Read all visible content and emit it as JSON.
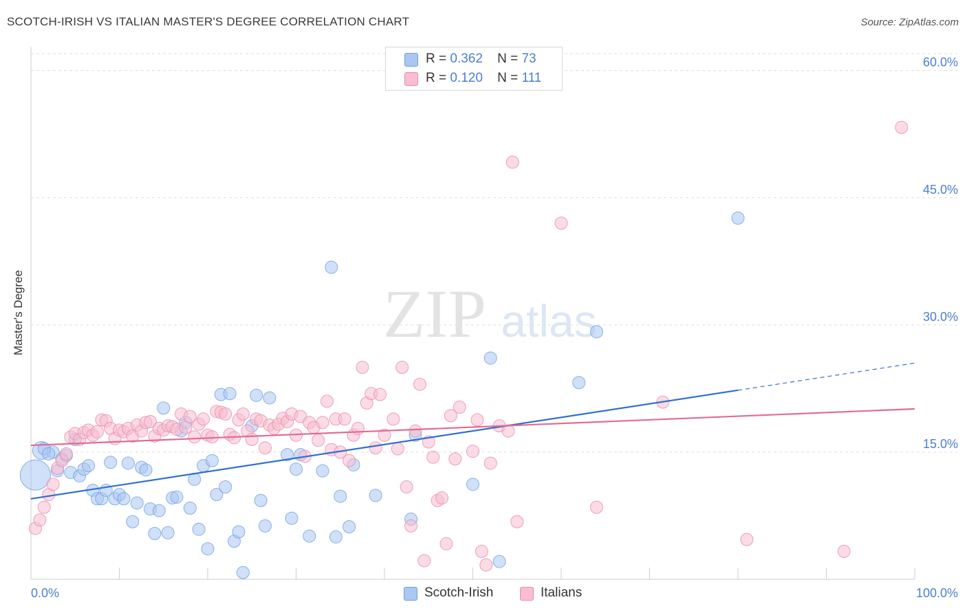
{
  "title": "SCOTCH-IRISH VS ITALIAN MASTER'S DEGREE CORRELATION CHART",
  "source": "Source: ZipAtlas.com",
  "watermark": {
    "zip": "ZIP",
    "atlas": "atlas"
  },
  "legend": {
    "r_label": "R =",
    "n_label": "N =",
    "entries": [
      {
        "name": "Scotch-Irish",
        "r": "0.362",
        "n": "73",
        "color": "#a9c7f2",
        "border": "#6f9fde"
      },
      {
        "name": "Italians",
        "r": "0.120",
        "n": "111",
        "color": "#f8bed0",
        "border": "#e98aa9"
      }
    ]
  },
  "chart_data": {
    "type": "scatter",
    "title": "SCOTCH-IRISH VS ITALIAN MASTER'S DEGREE CORRELATION CHART",
    "xlabel": "",
    "ylabel": "Master's Degree",
    "xlim": [
      0,
      100
    ],
    "ylim": [
      0,
      62
    ],
    "x_tick_labels": [
      "0.0%",
      "100.0%"
    ],
    "y_ticks": [
      15,
      30,
      45,
      60
    ],
    "y_tick_labels": [
      "15.0%",
      "30.0%",
      "45.0%",
      "60.0%"
    ],
    "grid": true,
    "legend_position": "top-center",
    "series": [
      {
        "name": "Scotch-Irish",
        "color": "#a9c7f2",
        "line_color": "#2f6fd0",
        "trend": {
          "x0": 0,
          "y0": 9.5,
          "x1": 80,
          "y1": 22.3,
          "dashed_to_x": 100,
          "dashed_to_y": 25.5
        },
        "points": [
          [
            1.2,
            15.2
          ],
          [
            2.5,
            15.0
          ],
          [
            3.5,
            14.2
          ],
          [
            4.0,
            14.6
          ],
          [
            3.0,
            12.8
          ],
          [
            4.5,
            12.6
          ],
          [
            5.5,
            12.2
          ],
          [
            6.0,
            13.0
          ],
          [
            5.0,
            16.5
          ],
          [
            6.5,
            13.4
          ],
          [
            7.0,
            10.5
          ],
          [
            7.5,
            9.5
          ],
          [
            8.0,
            9.5
          ],
          [
            8.5,
            10.5
          ],
          [
            9.0,
            13.8
          ],
          [
            9.5,
            9.5
          ],
          [
            10.0,
            10.0
          ],
          [
            10.5,
            9.5
          ],
          [
            11.0,
            13.7
          ],
          [
            11.5,
            6.8
          ],
          [
            12.0,
            9.0
          ],
          [
            12.5,
            13.2
          ],
          [
            13.0,
            12.9
          ],
          [
            13.5,
            8.3
          ],
          [
            14.0,
            5.4
          ],
          [
            14.5,
            8.1
          ],
          [
            15.0,
            20.2
          ],
          [
            15.5,
            5.5
          ],
          [
            16.0,
            9.6
          ],
          [
            16.5,
            9.7
          ],
          [
            17.0,
            17.5
          ],
          [
            17.5,
            18.5
          ],
          [
            18.0,
            8.4
          ],
          [
            18.5,
            11.8
          ],
          [
            19.0,
            5.9
          ],
          [
            19.5,
            13.4
          ],
          [
            20.0,
            3.6
          ],
          [
            20.5,
            14.0
          ],
          [
            21.0,
            10.0
          ],
          [
            21.5,
            21.8
          ],
          [
            22.0,
            10.9
          ],
          [
            22.5,
            21.9
          ],
          [
            23.0,
            4.5
          ],
          [
            23.5,
            5.6
          ],
          [
            24.0,
            0.8
          ],
          [
            25.0,
            18.1
          ],
          [
            25.5,
            21.7
          ],
          [
            26.0,
            9.3
          ],
          [
            26.5,
            6.3
          ],
          [
            27.0,
            21.4
          ],
          [
            29.0,
            14.7
          ],
          [
            29.5,
            7.2
          ],
          [
            30.0,
            13.0
          ],
          [
            30.5,
            14.7
          ],
          [
            31.5,
            5.1
          ],
          [
            33.0,
            12.8
          ],
          [
            34.0,
            36.8
          ],
          [
            34.5,
            5.0
          ],
          [
            35.0,
            9.8
          ],
          [
            36.0,
            6.2
          ],
          [
            36.5,
            13.5
          ],
          [
            39.0,
            9.9
          ],
          [
            43.0,
            7.1
          ],
          [
            43.5,
            17.0
          ],
          [
            50.0,
            11.2
          ],
          [
            52.0,
            26.1
          ],
          [
            53.0,
            2.1
          ],
          [
            62.0,
            23.2
          ],
          [
            64.0,
            29.2
          ],
          [
            80.0,
            42.6
          ],
          [
            0.5,
            12.3
          ],
          [
            1.5,
            15.4
          ],
          [
            2.0,
            14.8
          ]
        ]
      },
      {
        "name": "Italians",
        "color": "#f8bed0",
        "line_color": "#e36a93",
        "trend": {
          "x0": 0,
          "y0": 15.8,
          "x1": 100,
          "y1": 20.1
        },
        "points": [
          [
            0.5,
            6.0
          ],
          [
            1.0,
            7.0
          ],
          [
            1.5,
            8.5
          ],
          [
            2.0,
            10.0
          ],
          [
            2.5,
            11.2
          ],
          [
            3.0,
            13.1
          ],
          [
            3.5,
            14.0
          ],
          [
            4.0,
            14.8
          ],
          [
            4.5,
            16.8
          ],
          [
            5.0,
            17.2
          ],
          [
            5.5,
            16.5
          ],
          [
            6.0,
            17.3
          ],
          [
            6.5,
            17.6
          ],
          [
            7.0,
            17.0
          ],
          [
            7.5,
            17.4
          ],
          [
            8.0,
            18.8
          ],
          [
            8.5,
            18.7
          ],
          [
            9.0,
            17.8
          ],
          [
            9.5,
            16.6
          ],
          [
            10.0,
            17.6
          ],
          [
            10.5,
            17.4
          ],
          [
            11.0,
            17.8
          ],
          [
            11.5,
            16.9
          ],
          [
            12.0,
            18.2
          ],
          [
            12.5,
            17.5
          ],
          [
            13.0,
            18.5
          ],
          [
            13.5,
            18.6
          ],
          [
            14.0,
            16.9
          ],
          [
            14.5,
            17.8
          ],
          [
            15.0,
            17.6
          ],
          [
            15.5,
            18.1
          ],
          [
            16.0,
            18.0
          ],
          [
            16.5,
            17.7
          ],
          [
            17.0,
            19.5
          ],
          [
            17.5,
            17.9
          ],
          [
            18.0,
            19.2
          ],
          [
            18.5,
            16.8
          ],
          [
            19.0,
            18.3
          ],
          [
            19.5,
            18.9
          ],
          [
            20.0,
            17.0
          ],
          [
            20.5,
            16.8
          ],
          [
            21.0,
            19.8
          ],
          [
            21.5,
            19.7
          ],
          [
            22.0,
            19.5
          ],
          [
            22.5,
            17.1
          ],
          [
            23.0,
            16.7
          ],
          [
            23.5,
            18.8
          ],
          [
            24.0,
            19.5
          ],
          [
            24.5,
            17.5
          ],
          [
            25.0,
            16.5
          ],
          [
            25.5,
            18.9
          ],
          [
            26.0,
            18.7
          ],
          [
            26.5,
            15.5
          ],
          [
            27.0,
            18.2
          ],
          [
            27.5,
            17.8
          ],
          [
            28.0,
            18.3
          ],
          [
            28.5,
            19.0
          ],
          [
            29.0,
            18.6
          ],
          [
            29.5,
            19.5
          ],
          [
            30.0,
            17.0
          ],
          [
            30.5,
            19.2
          ],
          [
            31.0,
            14.5
          ],
          [
            31.5,
            18.5
          ],
          [
            32.0,
            17.9
          ],
          [
            32.5,
            16.4
          ],
          [
            33.0,
            18.5
          ],
          [
            33.5,
            21.0
          ],
          [
            34.0,
            15.3
          ],
          [
            34.5,
            18.9
          ],
          [
            35.0,
            15.0
          ],
          [
            35.5,
            18.9
          ],
          [
            36.0,
            14.0
          ],
          [
            36.5,
            17.0
          ],
          [
            37.0,
            17.8
          ],
          [
            37.5,
            25.0
          ],
          [
            38.0,
            20.8
          ],
          [
            38.5,
            21.9
          ],
          [
            39.0,
            15.5
          ],
          [
            39.5,
            21.8
          ],
          [
            40.0,
            17.0
          ],
          [
            41.0,
            18.9
          ],
          [
            41.5,
            15.4
          ],
          [
            42.0,
            25.0
          ],
          [
            42.5,
            10.9
          ],
          [
            43.0,
            6.3
          ],
          [
            43.5,
            17.5
          ],
          [
            44.0,
            23.0
          ],
          [
            44.5,
            2.2
          ],
          [
            45.0,
            16.2
          ],
          [
            45.5,
            14.4
          ],
          [
            46.0,
            9.3
          ],
          [
            46.5,
            9.6
          ],
          [
            47.0,
            4.2
          ],
          [
            47.5,
            19.3
          ],
          [
            48.0,
            14.2
          ],
          [
            48.5,
            20.3
          ],
          [
            50.0,
            15.1
          ],
          [
            50.5,
            18.8
          ],
          [
            51.0,
            3.3
          ],
          [
            51.5,
            1.7
          ],
          [
            52.0,
            13.7
          ],
          [
            53.0,
            18.1
          ],
          [
            54.0,
            17.5
          ],
          [
            54.5,
            49.2
          ],
          [
            55.0,
            6.8
          ],
          [
            60.0,
            42.0
          ],
          [
            64.0,
            8.5
          ],
          [
            71.5,
            20.9
          ],
          [
            81.0,
            4.7
          ],
          [
            92.0,
            3.3
          ],
          [
            98.5,
            53.3
          ]
        ]
      }
    ]
  }
}
